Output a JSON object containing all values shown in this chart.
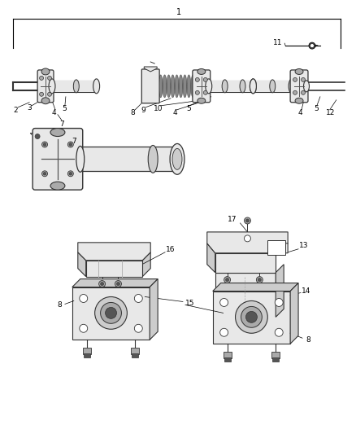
{
  "bg_color": "#ffffff",
  "line_color": "#333333",
  "gray1": "#cccccc",
  "gray2": "#e8e8e8",
  "gray3": "#aaaaaa",
  "gray4": "#555555",
  "label_color": "#222222",
  "callout_color": "#666666"
}
